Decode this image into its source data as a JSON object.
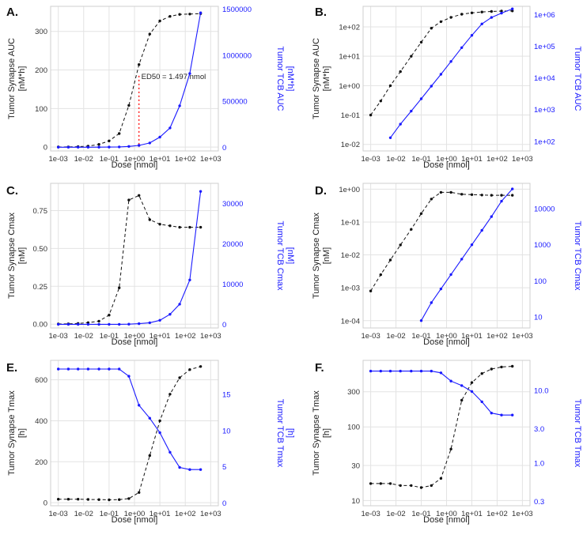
{
  "chart_data": [
    {
      "panel": "A.",
      "type": "line",
      "xlabel": "Dose [nmol]",
      "ylabel_left": [
        "Tumor Synapse AUC",
        "[nM*h]"
      ],
      "ylabel_right": [
        "Tumor TCB AUC",
        "[nM*h]"
      ],
      "xscale": "log",
      "xlim": [
        0.0005,
        2000
      ],
      "xticks": [
        0.001,
        0.01,
        0.1,
        1,
        10,
        100,
        1000
      ],
      "xtick_labels": [
        "1e-03",
        "1e-02",
        "1e-01",
        "1e+00",
        "1e+01",
        "1e+02",
        "1e+03"
      ],
      "left": {
        "scale": "linear",
        "lim": [
          -10,
          365
        ],
        "ticks": [
          0,
          100,
          200,
          300
        ],
        "tick_labels": [
          "0",
          "100",
          "200",
          "300"
        ]
      },
      "right": {
        "scale": "linear",
        "lim": [
          -40000,
          1530000
        ],
        "ticks": [
          0,
          500000,
          1000000,
          1500000
        ],
        "tick_labels": [
          "0",
          "500000",
          "1000000",
          "1500000"
        ]
      },
      "series": [
        {
          "name": "Tumor Synapse",
          "axis": "left",
          "color": "#111111",
          "style": "dashed",
          "x": [
            0.001,
            0.0025,
            0.006,
            0.015,
            0.04,
            0.1,
            0.25,
            0.6,
            1.5,
            4,
            10,
            25,
            60,
            150,
            400
          ],
          "y": [
            0.3,
            0.5,
            1,
            2.5,
            7,
            16,
            35,
            108,
            214,
            293,
            327,
            339,
            344,
            345,
            346
          ]
        },
        {
          "name": "Tumor TCB",
          "axis": "right",
          "color": "#1a1aff",
          "style": "solid",
          "x": [
            0.001,
            0.0025,
            0.006,
            0.015,
            0.04,
            0.1,
            0.25,
            0.6,
            1.5,
            4,
            10,
            25,
            60,
            150,
            400
          ],
          "y": [
            0,
            0,
            0,
            0,
            1000,
            2000,
            4000,
            9000,
            20000,
            47000,
            110000,
            210000,
            450000,
            800000,
            1460000
          ]
        }
      ],
      "annotation": {
        "text": "ED50 = 1.497 nmol",
        "x": 1.497,
        "y": 0,
        "y_top": 185,
        "color": "#ff2a2a"
      }
    },
    {
      "panel": "B.",
      "type": "line",
      "xlabel": "Dose [nmol]",
      "ylabel_left": [
        "Tumor Synapse AUC",
        "[nM*h]"
      ],
      "ylabel_right": [
        "Tumor TCB AUC",
        "[nM*h]"
      ],
      "xscale": "log",
      "xlim": [
        0.0005,
        2000
      ],
      "xticks": [
        0.001,
        0.01,
        0.1,
        1,
        10,
        100,
        1000
      ],
      "xtick_labels": [
        "1e-03",
        "1e-02",
        "1e-01",
        "1e+00",
        "1e+01",
        "1e+02",
        "1e+03"
      ],
      "left": {
        "scale": "log",
        "lim": [
          0.006,
          500
        ],
        "ticks": [
          0.01,
          0.1,
          1,
          10,
          100
        ],
        "tick_labels": [
          "1e-02",
          "1e-01",
          "1e+00",
          "1e+01",
          "1e+02"
        ]
      },
      "right": {
        "scale": "log",
        "lim": [
          50,
          1800000
        ],
        "ticks": [
          100,
          1000,
          10000,
          100000,
          1000000
        ],
        "tick_labels": [
          "1e+02",
          "1e+03",
          "1e+04",
          "1e+05",
          "1e+06"
        ]
      },
      "series": [
        {
          "name": "Tumor Synapse",
          "axis": "left",
          "color": "#111111",
          "style": "dashed",
          "x": [
            0.001,
            0.0025,
            0.006,
            0.015,
            0.04,
            0.1,
            0.25,
            0.6,
            1.5,
            4,
            10,
            25,
            60,
            150,
            400
          ],
          "y": [
            0.1,
            0.3,
            1,
            3,
            10,
            30,
            90,
            150,
            210,
            270,
            300,
            320,
            335,
            345,
            350
          ]
        },
        {
          "name": "Tumor TCB",
          "axis": "right",
          "color": "#1a1aff",
          "style": "solid",
          "x": [
            0.006,
            0.015,
            0.04,
            0.1,
            0.25,
            0.6,
            1.5,
            4,
            10,
            25,
            60,
            150,
            400
          ],
          "y": [
            130,
            350,
            900,
            2200,
            5500,
            13000,
            33000,
            90000,
            220000,
            500000,
            800000,
            1100000,
            1500000
          ]
        }
      ]
    },
    {
      "panel": "C.",
      "type": "line",
      "xlabel": "Dose [nmol]",
      "ylabel_left": [
        "Tumor Synapse Cmax",
        "[nM]"
      ],
      "ylabel_right": [
        "Tumor TCB Cmax",
        "[nM]"
      ],
      "xscale": "log",
      "xlim": [
        0.0005,
        2000
      ],
      "xticks": [
        0.001,
        0.01,
        0.1,
        1,
        10,
        100,
        1000
      ],
      "xtick_labels": [
        "1e-03",
        "1e-02",
        "1e-01",
        "1e+00",
        "1e+01",
        "1e+02",
        "1e+03"
      ],
      "left": {
        "scale": "linear",
        "lim": [
          -0.025,
          0.93
        ],
        "ticks": [
          0,
          0.25,
          0.5,
          0.75
        ],
        "tick_labels": [
          "0.00",
          "0.25",
          "0.50",
          "0.75"
        ]
      },
      "right": {
        "scale": "linear",
        "lim": [
          -900,
          35000
        ],
        "ticks": [
          0,
          10000,
          20000,
          30000
        ],
        "tick_labels": [
          "0",
          "10000",
          "20000",
          "30000"
        ]
      },
      "series": [
        {
          "name": "Tumor Synapse",
          "axis": "left",
          "color": "#111111",
          "style": "dashed",
          "x": [
            0.001,
            0.0025,
            0.006,
            0.015,
            0.04,
            0.1,
            0.25,
            0.6,
            1.5,
            4,
            10,
            25,
            60,
            150,
            400
          ],
          "y": [
            0.001,
            0.002,
            0.005,
            0.01,
            0.02,
            0.06,
            0.24,
            0.82,
            0.85,
            0.69,
            0.66,
            0.65,
            0.64,
            0.64,
            0.64
          ]
        },
        {
          "name": "Tumor TCB",
          "axis": "right",
          "color": "#1a1aff",
          "style": "solid",
          "x": [
            0.001,
            0.0025,
            0.006,
            0.015,
            0.04,
            0.1,
            0.25,
            0.6,
            1.5,
            4,
            10,
            25,
            60,
            150,
            400
          ],
          "y": [
            0,
            0,
            0,
            0,
            0,
            0,
            0,
            50,
            150,
            400,
            1000,
            2500,
            5000,
            11000,
            33000
          ]
        }
      ]
    },
    {
      "panel": "D.",
      "type": "line",
      "xlabel": "Dose [nmol]",
      "ylabel_left": [
        "Tumor Synapse Cmax",
        "[nM]"
      ],
      "ylabel_right": [
        "Tumor TCB Cmax",
        "[nM]"
      ],
      "xscale": "log",
      "xlim": [
        0.0005,
        2000
      ],
      "xticks": [
        0.001,
        0.01,
        0.1,
        1,
        10,
        100,
        1000
      ],
      "xtick_labels": [
        "1e-03",
        "1e-02",
        "1e-01",
        "1e+00",
        "1e+01",
        "1e+02",
        "1e+03"
      ],
      "left": {
        "scale": "log",
        "lim": [
          6e-05,
          1.5
        ],
        "ticks": [
          0.0001,
          0.001,
          0.01,
          0.1,
          1
        ],
        "tick_labels": [
          "1e-04",
          "1e-03",
          "1e-02",
          "1e-01",
          "1e+00"
        ]
      },
      "right": {
        "scale": "log",
        "lim": [
          5,
          50000
        ],
        "ticks": [
          10,
          100,
          1000,
          10000
        ],
        "tick_labels": [
          "10",
          "100",
          "1000",
          "10000"
        ]
      },
      "series": [
        {
          "name": "Tumor Synapse",
          "axis": "left",
          "color": "#111111",
          "style": "dashed",
          "x": [
            0.001,
            0.0025,
            0.006,
            0.015,
            0.04,
            0.1,
            0.25,
            0.6,
            1.5,
            4,
            10,
            25,
            60,
            150,
            400
          ],
          "y": [
            0.0008,
            0.0025,
            0.007,
            0.02,
            0.06,
            0.18,
            0.5,
            0.8,
            0.8,
            0.7,
            0.68,
            0.66,
            0.65,
            0.65,
            0.65
          ]
        },
        {
          "name": "Tumor TCB",
          "axis": "right",
          "color": "#1a1aff",
          "style": "solid",
          "x": [
            0.1,
            0.25,
            0.6,
            1.5,
            4,
            10,
            25,
            60,
            150,
            400
          ],
          "y": [
            8,
            25,
            60,
            150,
            400,
            1000,
            2500,
            6000,
            16000,
            35000
          ]
        }
      ]
    },
    {
      "panel": "E.",
      "type": "line",
      "xlabel": "Dose [nmol]",
      "ylabel_left": [
        "Tumor Synapse Tmax",
        "[h]"
      ],
      "ylabel_right": [
        "Tumor TCB Tmax",
        "[h]"
      ],
      "xscale": "log",
      "xlim": [
        0.0005,
        2000
      ],
      "xticks": [
        0.001,
        0.01,
        0.1,
        1,
        10,
        100,
        1000
      ],
      "xtick_labels": [
        "1e-03",
        "1e-02",
        "1e-01",
        "1e+00",
        "1e+01",
        "1e+02",
        "1e+03"
      ],
      "left": {
        "scale": "linear",
        "lim": [
          -15,
          695
        ],
        "ticks": [
          0,
          200,
          400,
          600
        ],
        "tick_labels": [
          "0",
          "200",
          "400",
          "600"
        ]
      },
      "right": {
        "scale": "linear",
        "lim": [
          -0.4,
          19.7
        ],
        "ticks": [
          0,
          5,
          10,
          15
        ],
        "tick_labels": [
          "0",
          "5",
          "10",
          "15"
        ]
      },
      "series": [
        {
          "name": "Tumor Synapse",
          "axis": "left",
          "color": "#111111",
          "style": "dashed",
          "x": [
            0.001,
            0.0025,
            0.006,
            0.015,
            0.04,
            0.1,
            0.25,
            0.6,
            1.5,
            4,
            10,
            25,
            60,
            150,
            400
          ],
          "y": [
            17,
            17,
            17,
            16,
            15,
            14,
            15,
            20,
            50,
            230,
            400,
            530,
            610,
            650,
            665
          ]
        },
        {
          "name": "Tumor TCB",
          "axis": "right",
          "color": "#1a1aff",
          "style": "solid",
          "x": [
            0.001,
            0.0025,
            0.006,
            0.015,
            0.04,
            0.1,
            0.25,
            0.6,
            1.5,
            4,
            10,
            25,
            60,
            150,
            400
          ],
          "y": [
            18.5,
            18.5,
            18.5,
            18.5,
            18.5,
            18.5,
            18.5,
            17.5,
            13.5,
            11.7,
            9.7,
            7,
            4.9,
            4.6,
            4.6
          ]
        }
      ]
    },
    {
      "panel": "F.",
      "type": "line",
      "xlabel": "Dose [nmol]",
      "ylabel_left": [
        "Tumor Synapse Tmax",
        "[h]"
      ],
      "ylabel_right": [
        "Tumor TCB Tmax",
        "[h]"
      ],
      "xscale": "log",
      "xlim": [
        0.0005,
        2000
      ],
      "xticks": [
        0.001,
        0.01,
        0.1,
        1,
        10,
        100,
        1000
      ],
      "xtick_labels": [
        "1e-03",
        "1e-02",
        "1e-01",
        "1e+00",
        "1e+01",
        "1e+02",
        "1e+03"
      ],
      "left": {
        "scale": "log",
        "lim": [
          8.5,
          800
        ],
        "ticks": [
          10,
          30,
          100,
          300
        ],
        "tick_labels": [
          "10",
          "30",
          "100",
          "300"
        ]
      },
      "right": {
        "scale": "log",
        "lim": [
          0.26,
          26
        ],
        "ticks": [
          0.3,
          1,
          3,
          10
        ],
        "tick_labels": [
          "0.3",
          "1.0",
          "3.0",
          "10.0"
        ]
      },
      "series": [
        {
          "name": "Tumor Synapse",
          "axis": "left",
          "color": "#111111",
          "style": "dashed",
          "x": [
            0.001,
            0.0025,
            0.006,
            0.015,
            0.04,
            0.1,
            0.25,
            0.6,
            1.5,
            4,
            10,
            25,
            60,
            150,
            400
          ],
          "y": [
            17,
            17,
            17,
            16,
            16,
            15,
            16,
            20,
            50,
            230,
            400,
            530,
            610,
            650,
            665
          ]
        },
        {
          "name": "Tumor TCB",
          "axis": "right",
          "color": "#1a1aff",
          "style": "solid",
          "x": [
            0.001,
            0.0025,
            0.006,
            0.015,
            0.04,
            0.1,
            0.25,
            0.6,
            1.5,
            4,
            10,
            25,
            60,
            150,
            400
          ],
          "y": [
            18.5,
            18.5,
            18.5,
            18.5,
            18.5,
            18.5,
            18.5,
            17.5,
            13.5,
            11.7,
            9.7,
            7,
            4.9,
            4.6,
            4.6
          ]
        }
      ]
    }
  ]
}
